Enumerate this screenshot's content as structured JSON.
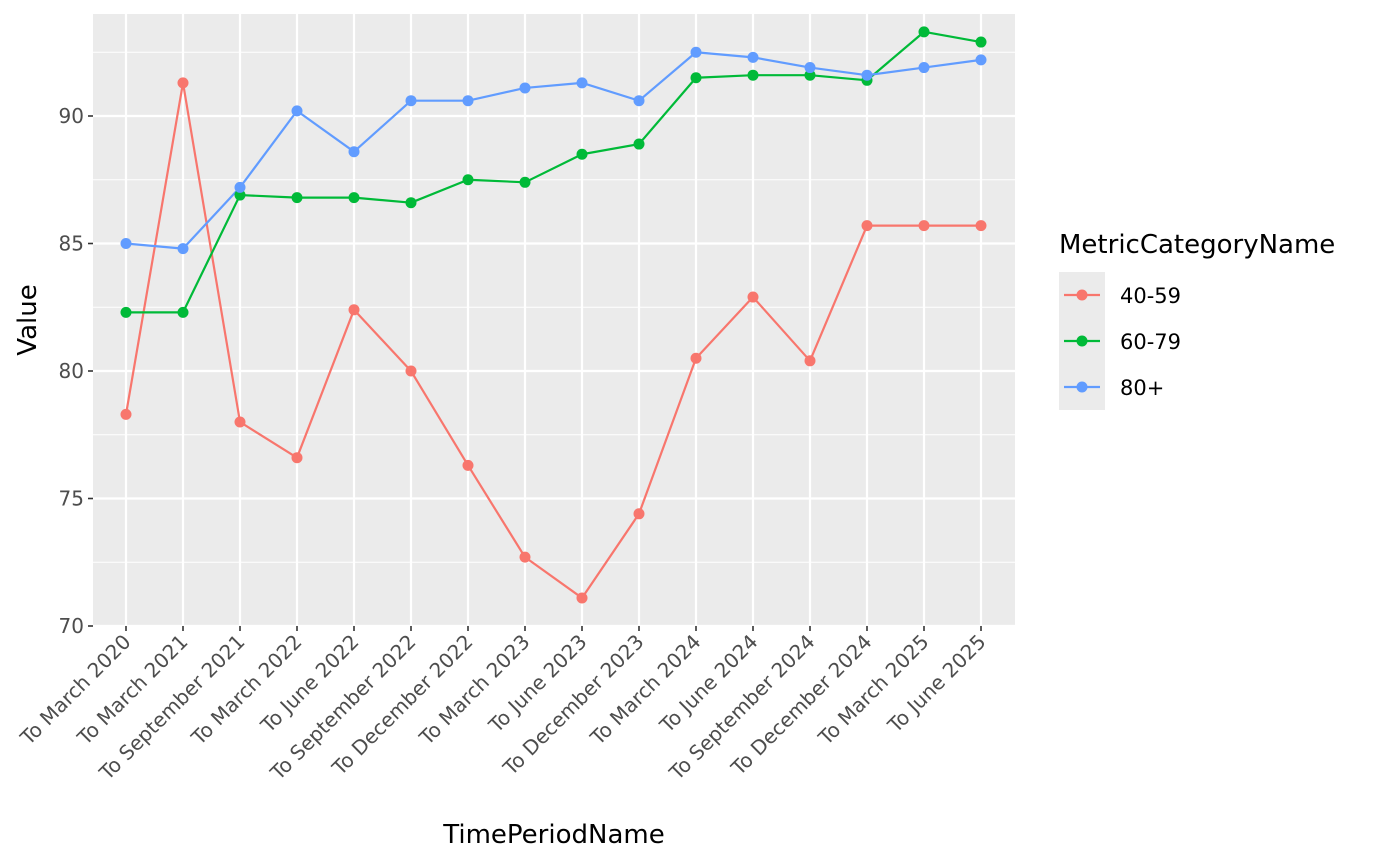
{
  "chart_data": {
    "type": "line",
    "xlabel": "TimePeriodName",
    "ylabel": "Value",
    "ylim": [
      70,
      94
    ],
    "yticks": [
      70,
      75,
      80,
      85,
      90
    ],
    "grid": true,
    "legend_position": "right",
    "legend_title": "MetricCategoryName",
    "categories": [
      "To March 2020",
      "To March 2021",
      "To September 2021",
      "To March 2022",
      "To June 2022",
      "To September 2022",
      "To December 2022",
      "To March 2023",
      "To June 2023",
      "To December 2023",
      "To March 2024",
      "To June 2024",
      "To September 2024",
      "To December 2024",
      "To March 2025",
      "To June 2025"
    ],
    "series": [
      {
        "name": "40-59",
        "color": "#F8766D",
        "values": [
          78.3,
          91.3,
          78.0,
          76.6,
          82.4,
          80.0,
          76.3,
          72.7,
          71.1,
          74.4,
          80.5,
          82.9,
          80.4,
          85.7,
          85.7,
          85.7
        ]
      },
      {
        "name": "60-79",
        "color": "#00BA38",
        "values": [
          82.3,
          82.3,
          86.9,
          86.8,
          86.8,
          86.6,
          87.5,
          87.4,
          88.5,
          88.9,
          91.5,
          91.6,
          91.6,
          91.4,
          93.3,
          92.9
        ]
      },
      {
        "name": "80+",
        "color": "#619CFF",
        "values": [
          85.0,
          84.8,
          87.2,
          90.2,
          88.6,
          90.6,
          90.6,
          91.1,
          91.3,
          90.6,
          92.5,
          92.3,
          91.9,
          91.6,
          91.9,
          92.2
        ]
      }
    ]
  }
}
